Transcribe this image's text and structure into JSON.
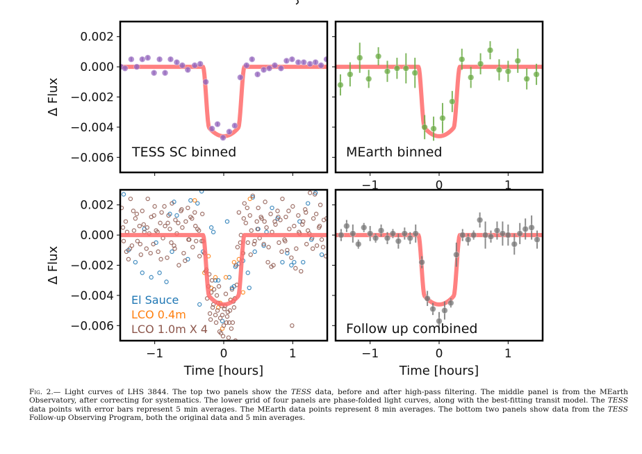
{
  "figure": {
    "caption": {
      "fig_label": "Fig. 2.",
      "parts": [
        {
          "t": "— Light curves of LHS 3844. The top two panels show the "
        },
        {
          "t": "TESS",
          "i": true
        },
        {
          "t": " data, before and after high-pass filtering. The middle panel is from the MEarth Observatory, after correcting for systematics. The lower grid of four panels are phase-folded light curves, along with the best-fitting transit model. The "
        },
        {
          "t": "TESS",
          "i": true
        },
        {
          "t": " data points with error bars represent 5 min averages. The MEarth data points represent 8 min averages. The bottom two panels show data from the "
        },
        {
          "t": "TESS",
          "i": true
        },
        {
          "t": " Follow-up Observing Program, both the original data and 5 min averages."
        }
      ]
    },
    "colors": {
      "model": "#ff6b6b",
      "tess": "#9467bd",
      "mearth": "#6aaa43",
      "followup": "#777777",
      "el_sauce": "#1f77b4",
      "lco_04": "#ff7f0e",
      "lco_10": "#8c564b",
      "axis": "#000000"
    }
  },
  "chart_data": [
    {
      "id": "tess",
      "type": "scatter",
      "title": "TESS SC binned",
      "xlabel": "",
      "ylabel": "Δ Flux",
      "xlim": [
        -1.5,
        1.5
      ],
      "ylim": [
        -0.007,
        0.003
      ],
      "xticks": [
        -1,
        0,
        1
      ],
      "xtick_labels": [],
      "yticks": [
        0.002,
        0.0,
        -0.002,
        -0.004,
        -0.006
      ],
      "ytick_labels": [
        "0.002",
        "0.000",
        "−0.002",
        "−0.004",
        "−0.006"
      ],
      "grid": false,
      "marker": "filled-circle-errorbar",
      "series": [
        {
          "name": "TESS SC binned",
          "x": [
            -1.49,
            -1.43,
            -1.34,
            -1.26,
            -1.18,
            -1.1,
            -1.01,
            -0.93,
            -0.85,
            -0.77,
            -0.68,
            -0.6,
            -0.52,
            -0.42,
            -0.34,
            -0.26,
            -0.17,
            -0.09,
            -0.01,
            0.08,
            0.16,
            0.24,
            0.33,
            0.41,
            0.49,
            0.58,
            0.66,
            0.74,
            0.83,
            0.91,
            0.99,
            1.08,
            1.16,
            1.25,
            1.33,
            1.41,
            1.49
          ],
          "y": [
            0.0,
            -0.0001,
            0.0005,
            0.0,
            0.0005,
            0.0006,
            -0.0004,
            0.0005,
            -0.0004,
            0.0005,
            0.0003,
            0.0001,
            -0.0002,
            0.0001,
            0.0002,
            -0.001,
            -0.0041,
            -0.0038,
            -0.0047,
            -0.0043,
            -0.0039,
            -0.0007,
            0.0001,
            0.0005,
            -0.0005,
            -0.0002,
            -0.0001,
            0.0001,
            -0.0001,
            0.0004,
            0.0005,
            0.0003,
            0.0003,
            0.0002,
            0.0003,
            0.0001,
            0.0005
          ],
          "yerr": 0.00012
        }
      ]
    },
    {
      "id": "mearth",
      "type": "scatter",
      "title": "MEarth binned",
      "xlabel": "",
      "ylabel": "",
      "xlim": [
        -1.5,
        1.5
      ],
      "ylim": [
        -0.007,
        0.003
      ],
      "xticks": [
        -1,
        0,
        1
      ],
      "xtick_labels": [
        "−1",
        "0",
        "1"
      ],
      "yticks": [
        0.002,
        0.0,
        -0.002,
        -0.004,
        -0.006
      ],
      "ytick_labels": [],
      "grid": false,
      "marker": "filled-circle-errorbar",
      "series": [
        {
          "name": "MEarth binned",
          "x": [
            -1.43,
            -1.29,
            -1.15,
            -1.02,
            -0.88,
            -0.75,
            -0.61,
            -0.48,
            -0.35,
            -0.21,
            -0.08,
            0.05,
            0.19,
            0.33,
            0.46,
            0.6,
            0.74,
            0.87,
            1.0,
            1.14,
            1.27,
            1.41
          ],
          "y": [
            -0.0012,
            -0.0005,
            0.0006,
            -0.0008,
            0.0007,
            -0.0003,
            -0.0001,
            -0.0001,
            -0.0004,
            -0.004,
            -0.0041,
            -0.0034,
            -0.0023,
            0.0005,
            -0.0007,
            0.0002,
            0.0011,
            -0.0002,
            -0.0003,
            0.0004,
            -0.0008,
            -0.0005
          ],
          "yerr": [
            0.0007,
            0.0008,
            0.001,
            0.0006,
            0.0006,
            0.0007,
            0.0007,
            0.001,
            0.001,
            0.0008,
            0.0008,
            0.001,
            0.0007,
            0.0007,
            0.0007,
            0.0007,
            0.0006,
            0.0007,
            0.0007,
            0.0008,
            0.0007,
            0.0007
          ]
        }
      ]
    },
    {
      "id": "ground",
      "type": "scatter",
      "title": "",
      "xlabel": "Time [hours]",
      "ylabel": "Δ Flux",
      "xlim": [
        -1.5,
        1.5
      ],
      "ylim": [
        -0.007,
        0.003
      ],
      "xticks": [
        -1,
        0,
        1
      ],
      "xtick_labels": [
        "−1",
        "0",
        "1"
      ],
      "yticks": [
        0.002,
        0.0,
        -0.002,
        -0.004,
        -0.006
      ],
      "ytick_labels": [
        "0.002",
        "0.000",
        "−0.002",
        "−0.004",
        "−0.006"
      ],
      "grid": false,
      "marker": "open-circle",
      "legend": {
        "placement": "bottom-left",
        "entries": [
          "El Sauce",
          "LCO 0.4m",
          "LCO 1.0m X 4"
        ]
      },
      "series": [
        {
          "name": "El Sauce",
          "color_key": "el_sauce",
          "x": [
            -1.45,
            -1.28,
            -1.18,
            -1.15,
            -1.05,
            -0.98,
            -0.93,
            -0.83,
            -0.78,
            -0.75,
            -0.72,
            -0.68,
            -0.52,
            -0.48,
            -0.38,
            -0.35,
            -0.32,
            -0.18,
            -0.15,
            -0.12,
            0.05,
            0.08,
            0.12,
            0.17,
            0.22,
            0.28,
            0.35,
            0.37,
            0.42,
            0.45,
            0.5,
            0.58,
            0.62,
            0.7,
            0.78,
            0.85,
            0.92,
            0.98,
            1.02,
            1.1,
            1.15,
            1.22,
            1.27,
            1.33,
            1.42,
            -1.38,
            -0.3,
            -0.02,
            -0.08,
            0.15
          ],
          "y": [
            0.0027,
            -0.0018,
            -0.0025,
            0.0004,
            -0.0028,
            -0.0005,
            -0.0025,
            -0.0031,
            0.0014,
            -0.0011,
            0.0022,
            0.0013,
            -0.0016,
            0.0023,
            0.0021,
            -0.0046,
            0.0029,
            0.0005,
            0.0002,
            -0.003,
            0.0009,
            -0.0028,
            -0.0035,
            -0.0021,
            -0.0019,
            -0.0017,
            -0.0025,
            -0.0035,
            0.0025,
            -0.0011,
            0.0004,
            -0.0007,
            0.0002,
            0.0018,
            0.0011,
            -0.0018,
            -0.0012,
            -0.002,
            -0.0018,
            0.0009,
            -0.0018,
            0.0021,
            -0.0003,
            0.0028,
            -0.0013,
            -0.001,
            -0.0011,
            -0.0057,
            -0.003,
            -0.0034
          ]
        },
        {
          "name": "LCO 0.4m",
          "color_key": "lco_04",
          "x": [
            -0.42,
            -0.22,
            -0.18,
            -0.12,
            -0.08,
            -0.02,
            0.03,
            0.1,
            0.15,
            0.22,
            0.28,
            0.38,
            -0.28,
            -0.05
          ],
          "y": [
            0.0023,
            -0.0014,
            -0.0035,
            -0.0028,
            -0.0048,
            -0.0062,
            -0.0028,
            -0.0043,
            -0.0018,
            -0.0016,
            -0.0038,
            0.0024,
            -0.0025,
            -0.0045
          ]
        },
        {
          "name": "LCO 1.0m X 4",
          "color_key": "lco_10",
          "x": [
            -1.48,
            -1.45,
            -1.42,
            -1.4,
            -1.38,
            -1.35,
            -1.33,
            -1.3,
            -1.28,
            -1.25,
            -1.22,
            -1.2,
            -1.18,
            -1.15,
            -1.12,
            -1.1,
            -1.08,
            -1.05,
            -1.02,
            -1.0,
            -0.98,
            -0.95,
            -0.92,
            -0.9,
            -0.88,
            -0.85,
            -0.82,
            -0.8,
            -0.78,
            -0.75,
            -0.72,
            -0.7,
            -0.68,
            -0.65,
            -0.62,
            -0.6,
            -0.58,
            -0.55,
            -0.52,
            -0.5,
            -0.48,
            -0.45,
            -0.42,
            -0.4,
            -0.38,
            -0.35,
            -0.32,
            -0.3,
            -0.28,
            -0.25,
            -0.22,
            -0.2,
            -0.18,
            -0.15,
            -0.12,
            -0.1,
            -0.08,
            -0.05,
            -0.02,
            0.0,
            0.02,
            0.05,
            0.08,
            0.1,
            0.12,
            0.15,
            0.18,
            0.2,
            0.22,
            0.25,
            0.28,
            0.3,
            0.32,
            0.35,
            0.38,
            0.4,
            0.42,
            0.45,
            0.48,
            0.5,
            0.52,
            0.55,
            0.58,
            0.6,
            0.62,
            0.65,
            0.68,
            0.7,
            0.72,
            0.75,
            0.78,
            0.8,
            0.82,
            0.85,
            0.88,
            0.9,
            0.92,
            0.95,
            0.98,
            1.0,
            1.02,
            1.05,
            1.08,
            1.1,
            1.12,
            1.15,
            1.18,
            1.2,
            1.22,
            1.25,
            1.28,
            1.3,
            1.32,
            1.35,
            1.38,
            1.4,
            1.42,
            1.45,
            1.48,
            -1.46,
            -1.36,
            -1.26,
            -1.16,
            -1.06,
            -0.96,
            -0.86,
            -0.76,
            -0.66,
            -0.56,
            -0.46,
            -0.36,
            -0.26,
            -0.16,
            -0.06,
            0.04,
            0.14,
            0.24,
            0.34,
            0.44,
            0.54,
            0.64,
            0.74,
            0.84,
            0.94,
            1.04,
            1.14,
            1.24,
            1.34,
            1.44,
            -1.41,
            -1.31,
            -1.21,
            -1.11,
            -1.01,
            -0.91,
            -0.81,
            -0.71,
            -0.61,
            -0.51,
            -0.41,
            -0.31,
            -0.21,
            -0.11,
            -0.01,
            0.09,
            0.19,
            0.29,
            0.39,
            0.49,
            0.59,
            0.69,
            0.79,
            0.89,
            0.99,
            1.09,
            1.19,
            1.29,
            1.39,
            1.49,
            -0.24,
            -0.19,
            -0.14,
            -0.09,
            -0.04,
            0.01,
            0.06,
            0.11,
            0.16,
            -0.17,
            -0.07,
            0.03,
            0.13,
            0.07,
            -0.03,
            0.17
          ],
          "y": [
            0.0018,
            -0.0004,
            0.0009,
            0.0002,
            -0.0016,
            0.0024,
            -0.0007,
            0.0003,
            0.0011,
            -0.0004,
            0.0006,
            -0.0013,
            0.0016,
            0.0002,
            -0.0009,
            0.0024,
            0.0001,
            0.0012,
            -0.0006,
            0.0019,
            0.0003,
            -0.0011,
            0.0008,
            0.0015,
            -0.0002,
            0.0006,
            -0.0015,
            0.0013,
            0.0004,
            0.0021,
            -0.0007,
            0.001,
            0.0001,
            -0.002,
            0.0016,
            0.0005,
            -0.0012,
            0.0009,
            0.0018,
            -0.0003,
            0.0012,
            -0.0008,
            0.0015,
            -0.0004,
            0.0004,
            -0.0014,
            -0.0004,
            -0.0004,
            -0.0012,
            -0.0023,
            -0.0034,
            -0.0052,
            -0.0038,
            -0.0046,
            -0.0053,
            -0.004,
            -0.0045,
            -0.0055,
            -0.0053,
            -0.006,
            -0.0047,
            -0.0054,
            -0.0058,
            -0.0043,
            -0.0036,
            -0.0048,
            -0.002,
            -0.0008,
            0.0015,
            0.0,
            -0.0012,
            0.0021,
            0.0008,
            -0.0005,
            0.0013,
            0.0003,
            0.0026,
            -0.0004,
            0.0009,
            0.0018,
            -0.0002,
            0.0011,
            -0.0006,
            0.0022,
            0.0005,
            -0.0008,
            0.0014,
            0.0002,
            -0.002,
            0.0007,
            0.0016,
            -0.0005,
            0.001,
            0.0024,
            -0.0003,
            0.0012,
            -0.001,
            0.0004,
            -0.0015,
            0.0019,
            0.0006,
            -0.0009,
            0.0013,
            0.0001,
            -0.0024,
            0.0009,
            0.0017,
            -0.0006,
            0.0003,
            0.0028,
            -0.0002,
            0.0011,
            0.0027,
            -0.0007,
            0.0005,
            0.002,
            -0.0003,
            0.001,
            -0.0014,
            0.0005,
            -0.0009,
            0.0014,
            0.0007,
            -0.0012,
            0.0002,
            0.0019,
            -0.0005,
            0.0008,
            -0.0017,
            0.0011,
            0.0003,
            -0.0024,
            -0.0048,
            -0.0064,
            -0.0058,
            -0.0044,
            -0.0005,
            0.0018,
            -0.0006,
            0.0012,
            -0.0018,
            0.0009,
            -0.0011,
            0.0016,
            -0.0022,
            0.0007,
            0.0001,
            0.0014,
            -0.0008,
            -0.0011,
            0.0016,
            -0.0006,
            0.0005,
            0.0013,
            -0.0016,
            0.0008,
            -0.0009,
            0.0017,
            -0.0003,
            0.0006,
            0.0014,
            -0.0026,
            -0.0058,
            -0.0067,
            -0.005,
            -0.0033,
            0.0011,
            -0.0013,
            0.0004,
            0.0009,
            -0.0021,
            0.0012,
            -0.0004,
            -0.006,
            0.0002,
            0.0015,
            -0.0009,
            0.0006,
            0.0011,
            -0.0042,
            -0.0056,
            -0.0036,
            -0.005,
            -0.0065,
            -0.0049,
            -0.0051,
            -0.0062,
            -0.0042,
            -0.003,
            -0.0034,
            -0.0039,
            -0.0058,
            -0.0068,
            -0.0047,
            -0.007
          ]
        }
      ]
    },
    {
      "id": "followup",
      "type": "scatter",
      "title": "Follow up combined",
      "xlabel": "Time [hours]",
      "ylabel": "",
      "xlim": [
        -1.5,
        1.5
      ],
      "ylim": [
        -0.007,
        0.003
      ],
      "xticks": [
        -1,
        0,
        1
      ],
      "xtick_labels": [
        "−1",
        "0",
        "1"
      ],
      "yticks": [
        0.002,
        0.0,
        -0.002,
        -0.004,
        -0.006
      ],
      "ytick_labels": [],
      "grid": false,
      "marker": "filled-circle-errorbar",
      "series": [
        {
          "name": "Follow up combined",
          "x": [
            -1.42,
            -1.34,
            -1.25,
            -1.17,
            -1.09,
            -1.0,
            -0.92,
            -0.84,
            -0.75,
            -0.67,
            -0.59,
            -0.5,
            -0.42,
            -0.34,
            -0.25,
            -0.17,
            -0.09,
            0.0,
            0.08,
            0.17,
            0.25,
            0.34,
            0.42,
            0.5,
            0.59,
            0.67,
            0.75,
            0.84,
            0.92,
            1.0,
            1.09,
            1.17,
            1.25,
            1.34,
            1.42
          ],
          "y": [
            0.0,
            0.0006,
            0.0001,
            -0.0006,
            0.0005,
            0.0001,
            -0.0002,
            0.0003,
            -0.0002,
            0.0001,
            -0.0004,
            0.0001,
            -0.0002,
            0.0001,
            -0.0018,
            -0.0042,
            -0.0049,
            -0.0057,
            -0.005,
            -0.0045,
            -0.0013,
            0.0,
            -0.0003,
            0.0,
            0.001,
            0.0,
            -0.0001,
            0.0003,
            0.0001,
            0.0,
            -0.0006,
            0.0001,
            0.0004,
            0.0005,
            -0.0003
          ],
          "yerr": [
            0.0004,
            0.0004,
            0.0006,
            0.0003,
            0.0003,
            0.0005,
            0.0003,
            0.0004,
            0.0004,
            0.0003,
            0.0005,
            0.0004,
            0.0004,
            0.0006,
            0.0004,
            0.0005,
            0.0004,
            0.0006,
            0.0006,
            0.0003,
            0.0008,
            0.0004,
            0.0004,
            0.0003,
            0.0005,
            0.0009,
            0.0004,
            0.0006,
            0.0008,
            0.0007,
            0.0007,
            0.0007,
            0.0007,
            0.0008,
            0.0006
          ]
        }
      ]
    }
  ],
  "model": {
    "name": "best-fitting transit model",
    "depth": -0.0046,
    "ingress_start": -0.3,
    "egress_end": 0.3,
    "ingress_duration": 0.09
  }
}
